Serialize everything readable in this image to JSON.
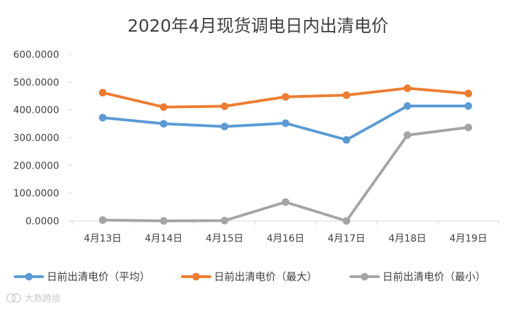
{
  "chart_data": {
    "type": "line",
    "title": "2020年4月现货调电日内出清电价",
    "categories": [
      "4月13日",
      "4月14日",
      "4月15日",
      "4月16日",
      "4月17日",
      "4月18日",
      "4月19日"
    ],
    "series": [
      {
        "name": "日前出清电价（平均）",
        "color": "#5b9bd5",
        "values": [
          372,
          350,
          340,
          352,
          292,
          414,
          414
        ]
      },
      {
        "name": "日前出清电价（最大）",
        "color": "#ed7d31",
        "values": [
          462,
          410,
          413,
          447,
          453,
          478,
          459
        ]
      },
      {
        "name": "日前出清电价（最小）",
        "color": "#a5a5a5",
        "values": [
          3,
          0,
          1,
          68,
          0,
          309,
          337
        ]
      }
    ],
    "y_ticks": [
      "0.0000",
      "100.0000",
      "200.0000",
      "300.0000",
      "400.0000",
      "500.0000",
      "600.0000"
    ],
    "ylim": [
      0,
      600
    ],
    "grid": false,
    "legend": "bottom"
  },
  "watermark": "大数跨境"
}
